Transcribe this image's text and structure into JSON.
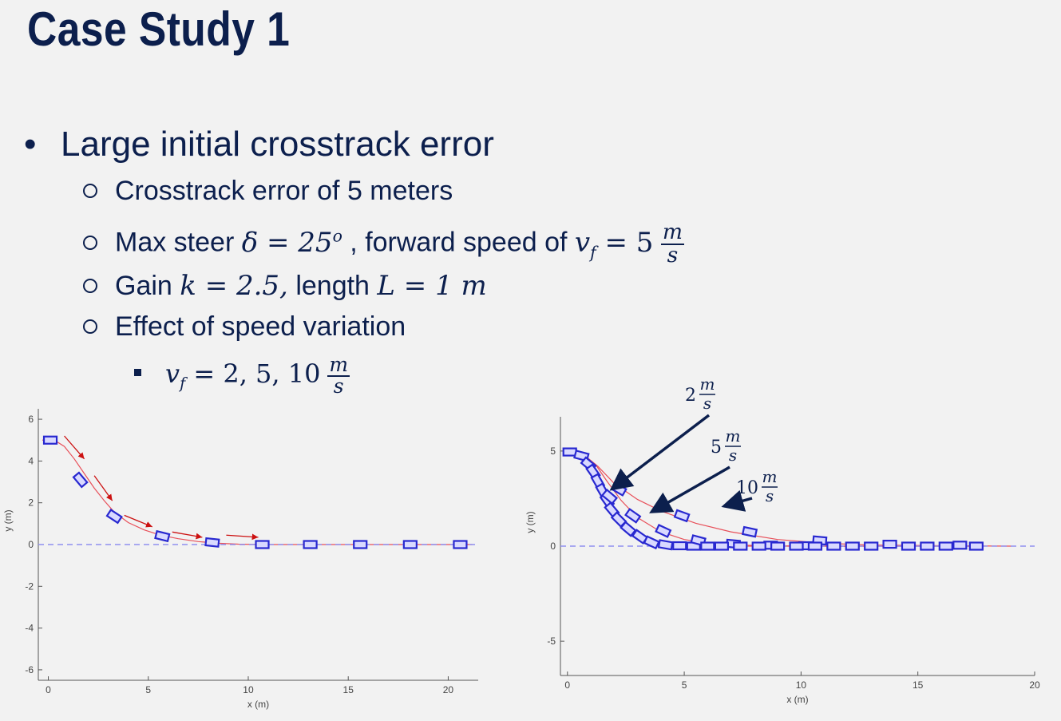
{
  "slide": {
    "title": "Case Study 1",
    "bullet": "Large initial crosstrack error",
    "sub1": "Crosstrack error of 5 meters",
    "sub2": {
      "prefix": "Max steer",
      "delta_eq": "δ = 25",
      "deg_sup": "o",
      "mid": ", forward speed of",
      "v_eq": "v",
      "v_sub": "f",
      "v_val": "= 5",
      "unit_num": "m",
      "unit_den": "s"
    },
    "sub3": {
      "prefix": "Gain",
      "k_eq": "k = 2.5,",
      "mid": "length",
      "l_eq": "L = 1 m"
    },
    "sub4": "Effect of speed variation",
    "sub5": {
      "v": "v",
      "v_sub": "f",
      "vals": "= 2, 5, 10",
      "unit_num": "m",
      "unit_den": "s"
    }
  },
  "chart_data": [
    {
      "type": "line",
      "xlabel": "x (m)",
      "ylabel": "y (m)",
      "xlim": [
        -0.5,
        21.5
      ],
      "ylim": [
        -6.5,
        6.5
      ],
      "xticks": [
        "0",
        "5",
        "10",
        "15",
        "20"
      ],
      "yticks": [
        "6",
        "4",
        "2",
        "0",
        "-2",
        "-4",
        "-6"
      ],
      "grid": false,
      "series": [
        {
          "role": "path",
          "color": "#e8505a",
          "points": [
            [
              -0.3,
              5.0
            ],
            [
              0.3,
              5.0
            ],
            [
              0.8,
              4.7
            ],
            [
              1.3,
              4.1
            ],
            [
              1.8,
              3.4
            ],
            [
              2.3,
              2.7
            ],
            [
              2.8,
              2.1
            ],
            [
              3.3,
              1.55
            ],
            [
              4.0,
              1.05
            ],
            [
              4.8,
              0.7
            ],
            [
              5.6,
              0.45
            ],
            [
              6.5,
              0.28
            ],
            [
              7.5,
              0.14
            ],
            [
              8.5,
              0.06
            ],
            [
              9.5,
              0.02
            ],
            [
              10.7,
              0.0
            ],
            [
              21.2,
              0.0
            ]
          ]
        },
        {
          "role": "reference",
          "color": "#8f8ff0",
          "points": [
            [
              -0.5,
              0.0
            ],
            [
              21.5,
              0.0
            ]
          ]
        }
      ],
      "vehicles": [
        {
          "x": 0.1,
          "y": 5.0,
          "heading": 0
        },
        {
          "x": 1.6,
          "y": 3.1,
          "heading": -50
        },
        {
          "x": 3.3,
          "y": 1.35,
          "heading": -33
        },
        {
          "x": 5.7,
          "y": 0.4,
          "heading": -14
        },
        {
          "x": 8.2,
          "y": 0.1,
          "heading": -6
        },
        {
          "x": 10.7,
          "y": 0.0,
          "heading": 0
        },
        {
          "x": 13.1,
          "y": 0.0,
          "heading": 0
        },
        {
          "x": 15.6,
          "y": 0.0,
          "heading": 0
        },
        {
          "x": 18.1,
          "y": 0.0,
          "heading": 0
        },
        {
          "x": 20.6,
          "y": 0.0,
          "heading": 0
        }
      ],
      "direction_arrows": [
        {
          "from": [
            0.8,
            5.2
          ],
          "to": [
            1.8,
            4.1
          ]
        },
        {
          "from": [
            2.3,
            3.3
          ],
          "to": [
            3.2,
            2.1
          ]
        },
        {
          "from": [
            3.8,
            1.4
          ],
          "to": [
            5.2,
            0.85
          ]
        },
        {
          "from": [
            6.2,
            0.6
          ],
          "to": [
            7.7,
            0.35
          ]
        },
        {
          "from": [
            8.9,
            0.45
          ],
          "to": [
            10.5,
            0.35
          ]
        }
      ]
    },
    {
      "type": "line",
      "xlabel": "x (m)",
      "ylabel": "y (m)",
      "xlim": [
        -0.3,
        20
      ],
      "ylim": [
        -6.8,
        6.8
      ],
      "xticks": [
        "0",
        "5",
        "10",
        "15",
        "20"
      ],
      "yticks": [
        "5",
        "0",
        "-5"
      ],
      "grid": false,
      "series": [
        {
          "name": "2",
          "color": "#e8505a",
          "points": [
            [
              0,
              5.0
            ],
            [
              0.5,
              4.9
            ],
            [
              1.0,
              4.4
            ],
            [
              1.5,
              3.2
            ],
            [
              2.0,
              2.0
            ],
            [
              2.5,
              1.1
            ],
            [
              3.0,
              0.5
            ],
            [
              3.5,
              0.18
            ],
            [
              4.0,
              0.05
            ],
            [
              5.0,
              0.0
            ],
            [
              17.8,
              0.0
            ]
          ]
        },
        {
          "name": "5",
          "color": "#e8505a",
          "points": [
            [
              0,
              5.0
            ],
            [
              0.6,
              4.85
            ],
            [
              1.2,
              4.3
            ],
            [
              1.7,
              3.4
            ],
            [
              2.3,
              2.4
            ],
            [
              3.0,
              1.5
            ],
            [
              4.0,
              0.75
            ],
            [
              5.0,
              0.35
            ],
            [
              6.0,
              0.15
            ],
            [
              7.5,
              0.05
            ],
            [
              10,
              0.0
            ],
            [
              17.8,
              0.0
            ]
          ]
        },
        {
          "name": "10",
          "color": "#e8505a",
          "points": [
            [
              0,
              5.0
            ],
            [
              0.7,
              4.8
            ],
            [
              1.3,
              4.2
            ],
            [
              2.0,
              3.3
            ],
            [
              3.0,
              2.45
            ],
            [
              4.0,
              1.85
            ],
            [
              5.5,
              1.2
            ],
            [
              7.0,
              0.75
            ],
            [
              9.0,
              0.35
            ],
            [
              11,
              0.15
            ],
            [
              13,
              0.06
            ],
            [
              16,
              0.02
            ],
            [
              19,
              0.0
            ]
          ]
        },
        {
          "role": "reference",
          "color": "#8f8ff0",
          "points": [
            [
              -0.3,
              0.0
            ],
            [
              20,
              0.0
            ]
          ]
        }
      ],
      "vehicles": [
        {
          "x": 0.1,
          "y": 4.95,
          "heading": 0
        },
        {
          "x": 0.6,
          "y": 4.75,
          "heading": -15
        },
        {
          "x": 0.9,
          "y": 4.3,
          "heading": -40
        },
        {
          "x": 1.1,
          "y": 3.9,
          "heading": -55
        },
        {
          "x": 1.3,
          "y": 3.4,
          "heading": -60
        },
        {
          "x": 1.5,
          "y": 2.9,
          "heading": -60
        },
        {
          "x": 1.7,
          "y": 2.4,
          "heading": -55
        },
        {
          "x": 1.9,
          "y": 1.9,
          "heading": -50
        },
        {
          "x": 2.2,
          "y": 1.4,
          "heading": -45
        },
        {
          "x": 2.6,
          "y": 0.9,
          "heading": -40
        },
        {
          "x": 3.1,
          "y": 0.5,
          "heading": -35
        },
        {
          "x": 3.6,
          "y": 0.2,
          "heading": -25
        },
        {
          "x": 4.2,
          "y": 0.07,
          "heading": -10
        },
        {
          "x": 4.8,
          "y": 0.02,
          "heading": 0
        },
        {
          "x": 5.4,
          "y": 0.0,
          "heading": 0
        },
        {
          "x": 1.8,
          "y": 2.6,
          "heading": -40
        },
        {
          "x": 2.2,
          "y": 3.0,
          "heading": -30
        },
        {
          "x": 2.8,
          "y": 1.6,
          "heading": -35
        },
        {
          "x": 4.1,
          "y": 0.8,
          "heading": -25
        },
        {
          "x": 5.6,
          "y": 0.3,
          "heading": -15
        },
        {
          "x": 7.1,
          "y": 0.12,
          "heading": -5
        },
        {
          "x": 8.7,
          "y": 0.05,
          "heading": 0
        },
        {
          "x": 10.2,
          "y": 0.02,
          "heading": 0
        },
        {
          "x": 4.9,
          "y": 1.6,
          "heading": -20
        },
        {
          "x": 7.8,
          "y": 0.75,
          "heading": -12
        },
        {
          "x": 10.8,
          "y": 0.3,
          "heading": -5
        },
        {
          "x": 13.8,
          "y": 0.1,
          "heading": 0
        },
        {
          "x": 16.8,
          "y": 0.05,
          "heading": 0
        },
        {
          "x": 6.0,
          "y": 0.0,
          "heading": 0
        },
        {
          "x": 6.6,
          "y": 0.0,
          "heading": 0
        },
        {
          "x": 7.4,
          "y": 0.0,
          "heading": 0
        },
        {
          "x": 8.2,
          "y": 0.0,
          "heading": 0
        },
        {
          "x": 9.0,
          "y": 0.0,
          "heading": 0
        },
        {
          "x": 9.8,
          "y": 0.0,
          "heading": 0
        },
        {
          "x": 10.6,
          "y": 0.0,
          "heading": 0
        },
        {
          "x": 11.4,
          "y": 0.0,
          "heading": 0
        },
        {
          "x": 12.2,
          "y": 0.0,
          "heading": 0
        },
        {
          "x": 13.0,
          "y": 0.0,
          "heading": 0
        },
        {
          "x": 14.6,
          "y": 0.0,
          "heading": 0
        },
        {
          "x": 15.4,
          "y": 0.0,
          "heading": 0
        },
        {
          "x": 16.2,
          "y": 0.0,
          "heading": 0
        },
        {
          "x": 17.5,
          "y": 0.0,
          "heading": 0
        }
      ],
      "annotations": [
        {
          "value": "2",
          "unit_num": "m",
          "unit_den": "s"
        },
        {
          "value": "5",
          "unit_num": "m",
          "unit_den": "s"
        },
        {
          "value": "10",
          "unit_num": "m",
          "unit_den": "s"
        }
      ]
    }
  ]
}
